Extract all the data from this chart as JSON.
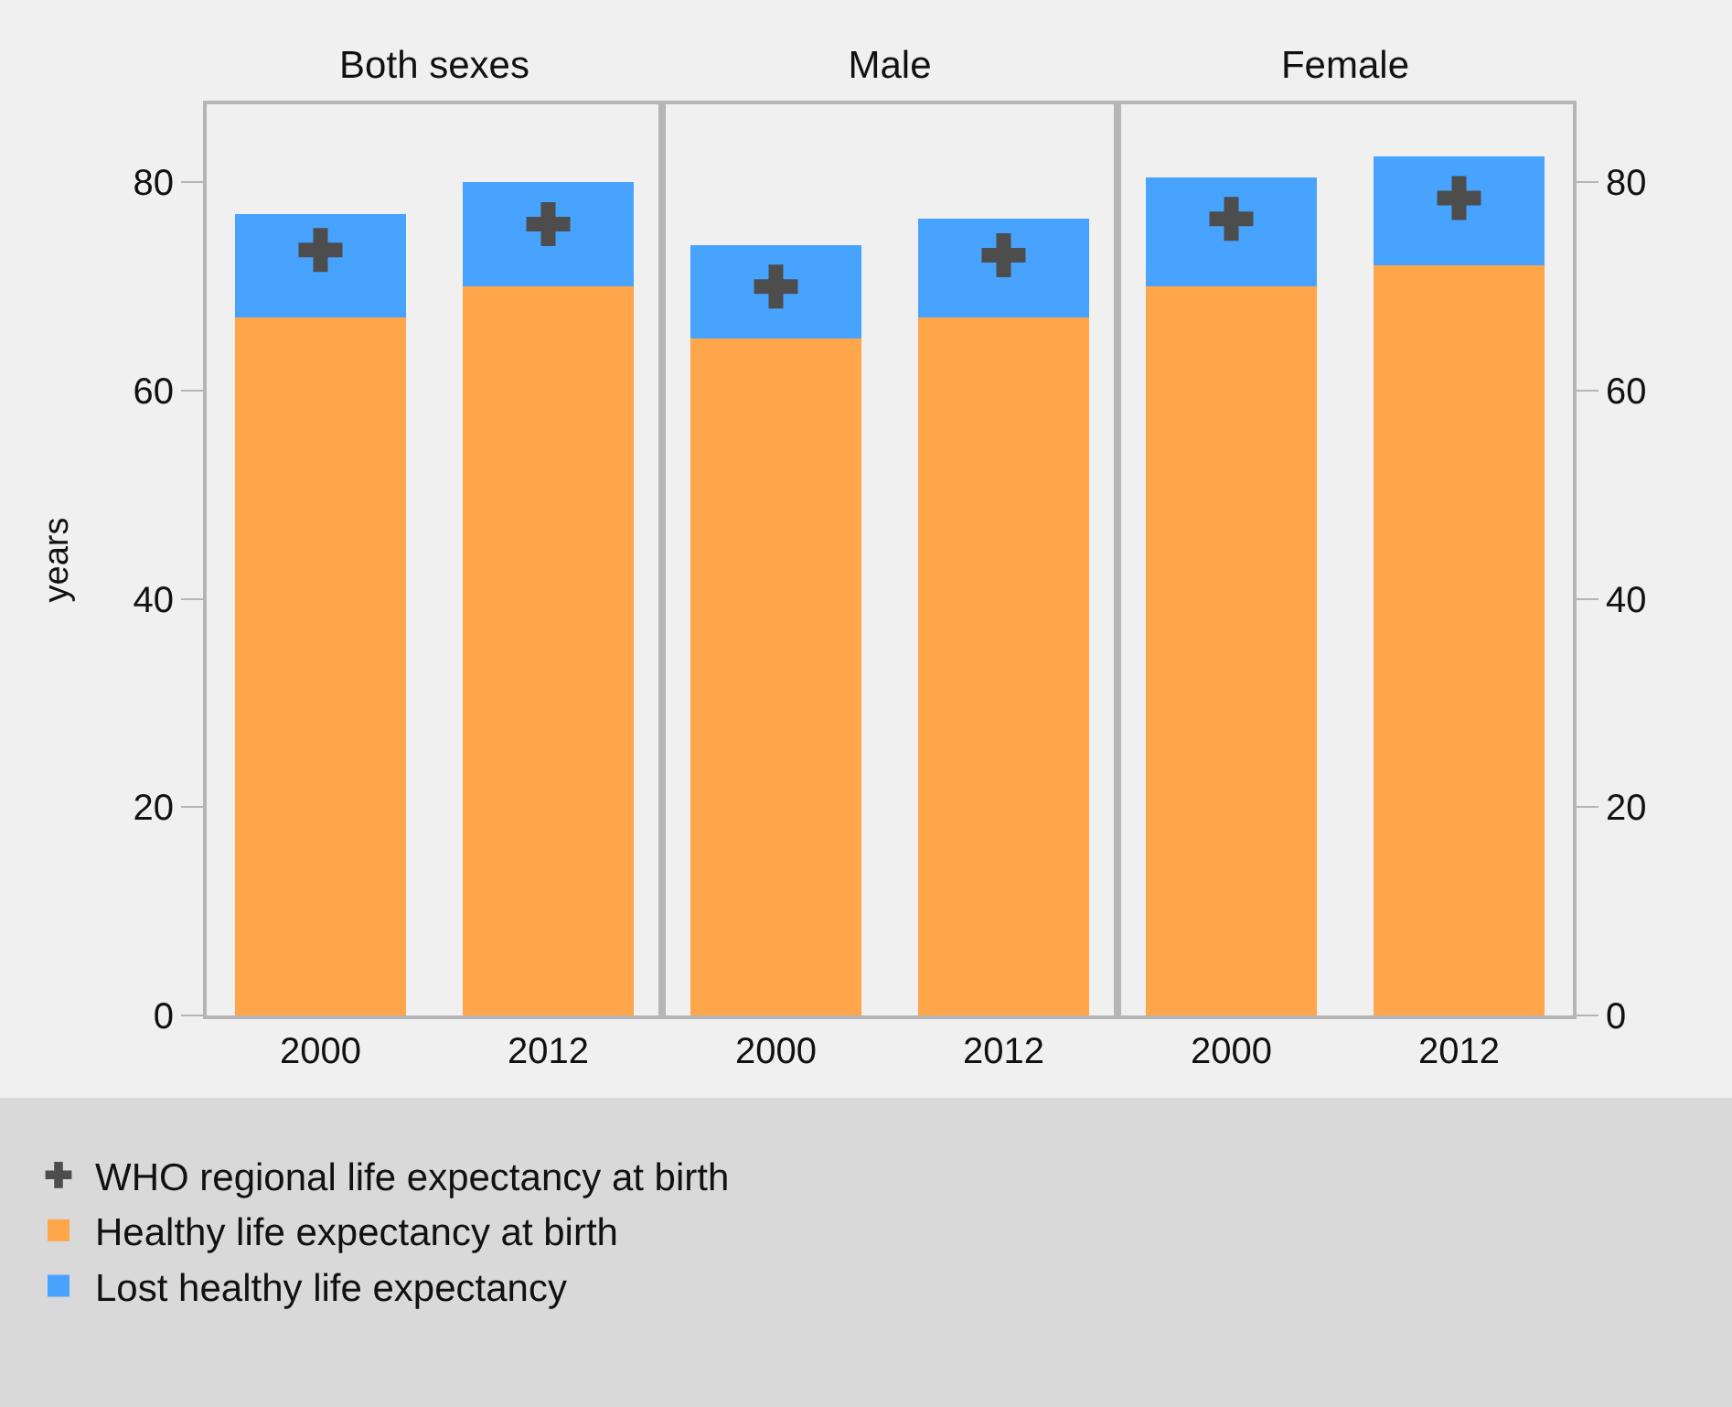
{
  "chart_data": [
    {
      "type": "bar",
      "title": "Both sexes",
      "ylabel": "years",
      "categories": [
        "2000",
        "2012"
      ],
      "stacked": true,
      "ylim": [
        0,
        87.5
      ],
      "yticks": [
        0,
        20,
        40,
        60,
        80
      ],
      "grid": false,
      "legend": "bottom",
      "marker": "cross",
      "series": [
        {
          "name": "WHO regional life expectancy at birth",
          "type": "scatter",
          "color": "#4d4d4d",
          "values": [
            73.5,
            76
          ]
        },
        {
          "name": "Healthy life expectancy at birth",
          "color": "#ffa54a",
          "values": [
            67,
            70
          ]
        },
        {
          "name": "Lost healthy life expectancy",
          "color": "#48a3ff",
          "values": [
            10,
            10
          ]
        }
      ]
    },
    {
      "type": "bar",
      "title": "Male",
      "categories": [
        "2000",
        "2012"
      ],
      "stacked": true,
      "ylim": [
        0,
        87.5
      ],
      "yticks": [
        0,
        20,
        40,
        60,
        80
      ],
      "tick_labels": "x",
      "grid": false,
      "marker": "cross",
      "series": [
        {
          "type": "scatter",
          "color": "#4d4d4d",
          "values": [
            70,
            73
          ]
        },
        {
          "color": "#ffa54a",
          "values": [
            65,
            67
          ]
        },
        {
          "color": "#48a3ff",
          "values": [
            9,
            9.5
          ]
        }
      ]
    },
    {
      "type": "bar",
      "title": "Female",
      "categories": [
        "2000",
        "2012"
      ],
      "stacked": true,
      "y2lim": [
        0,
        87.5
      ],
      "y2ticks": [
        0,
        20,
        40,
        60,
        80
      ],
      "grid": false,
      "marker": "cross",
      "series": [
        {
          "type": "scatter",
          "axis": "y2",
          "color": "#4d4d4d",
          "values": [
            76.5,
            78.5
          ]
        },
        {
          "axis": "y2",
          "color": "#ffa54a",
          "values": [
            70,
            72
          ]
        },
        {
          "axis": "y2",
          "color": "#48a3ff",
          "values": [
            10.5,
            10.5
          ]
        }
      ]
    }
  ]
}
